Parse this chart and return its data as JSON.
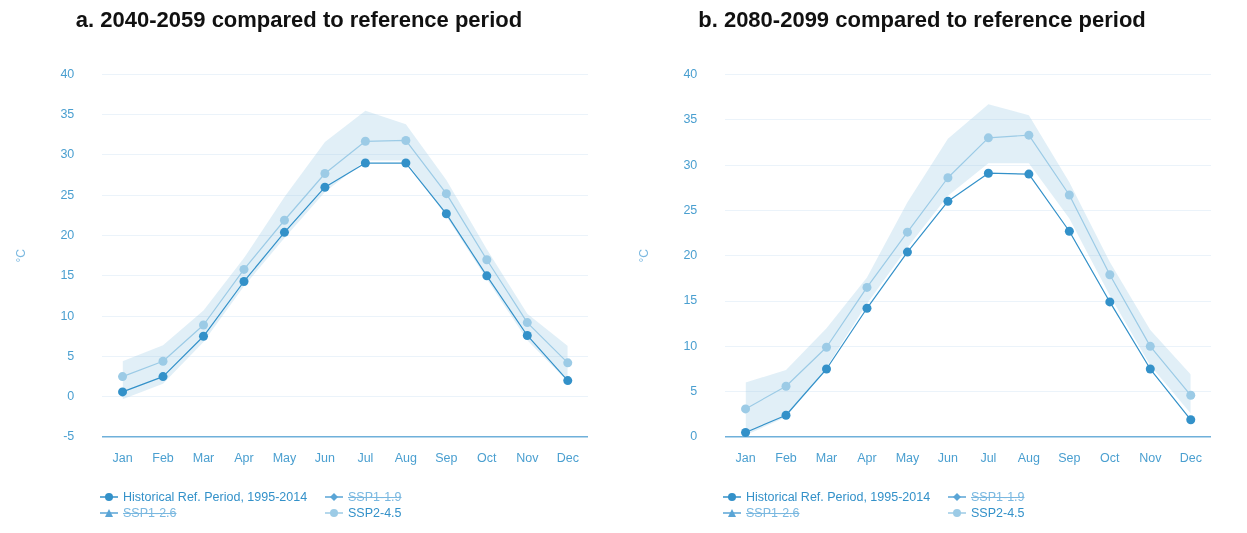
{
  "chart_data": [
    {
      "type": "line",
      "title": "a. 2040-2059 compared to reference period",
      "ylabel": "°C",
      "categories": [
        "Jan",
        "Feb",
        "Mar",
        "Apr",
        "May",
        "Jun",
        "Jul",
        "Aug",
        "Sep",
        "Oct",
        "Nov",
        "Dec"
      ],
      "ylim": [
        -5,
        40
      ],
      "yticks": [
        -5,
        0,
        5,
        10,
        15,
        20,
        25,
        30,
        35,
        40
      ],
      "grid": "y",
      "legend": "bottom left",
      "series": [
        {
          "name": "Historical Ref. Period, 1995-2014",
          "color": "#3391c9",
          "marker": "circle",
          "values": [
            0.6,
            2.5,
            7.5,
            14.3,
            20.4,
            26.0,
            29.0,
            29.0,
            22.7,
            15.0,
            7.6,
            2.0
          ]
        },
        {
          "name": "SSP1-1.9",
          "color": "#5aa5d6",
          "marker": "diamond",
          "values": [
            null,
            null,
            null,
            null,
            null,
            null,
            null,
            null,
            null,
            null,
            null,
            null
          ]
        },
        {
          "name": "SSP1-2.6",
          "color": "#5aa5d6",
          "marker": "triangle",
          "values": [
            null,
            null,
            null,
            null,
            null,
            null,
            null,
            null,
            null,
            null,
            null,
            null
          ]
        },
        {
          "name": "SSP2-4.5",
          "color": "#9ccbe6",
          "marker": "circle",
          "values": [
            2.5,
            4.4,
            8.9,
            15.8,
            21.9,
            27.7,
            31.7,
            31.8,
            25.2,
            17.0,
            9.2,
            4.2
          ],
          "lower": [
            -0.3,
            1.6,
            6.8,
            13.7,
            19.7,
            25.4,
            29.3,
            29.3,
            22.4,
            14.6,
            7.0,
            1.9
          ],
          "upper": [
            4.4,
            6.4,
            10.7,
            17.2,
            24.8,
            31.6,
            35.5,
            33.8,
            26.9,
            18.3,
            10.3,
            6.3
          ]
        }
      ]
    },
    {
      "type": "line",
      "title": "b. 2080-2099 compared to reference period",
      "ylabel": "°C",
      "categories": [
        "Jan",
        "Feb",
        "Mar",
        "Apr",
        "May",
        "Jun",
        "Jul",
        "Aug",
        "Sep",
        "Oct",
        "Nov",
        "Dec"
      ],
      "ylim": [
        0,
        40
      ],
      "yticks": [
        0,
        5,
        10,
        15,
        20,
        25,
        30,
        35,
        40
      ],
      "grid": "y",
      "legend": "bottom left",
      "series": [
        {
          "name": "Historical Ref. Period, 1995-2014",
          "color": "#3391c9",
          "marker": "circle",
          "values": [
            0.5,
            2.4,
            7.5,
            14.2,
            20.4,
            26.0,
            29.1,
            29.0,
            22.7,
            14.9,
            7.5,
            1.9
          ]
        },
        {
          "name": "SSP1-1.9",
          "color": "#5aa5d6",
          "marker": "diamond",
          "values": [
            null,
            null,
            null,
            null,
            null,
            null,
            null,
            null,
            null,
            null,
            null,
            null
          ]
        },
        {
          "name": "SSP1-2.6",
          "color": "#5aa5d6",
          "marker": "triangle",
          "values": [
            null,
            null,
            null,
            null,
            null,
            null,
            null,
            null,
            null,
            null,
            null,
            null
          ]
        },
        {
          "name": "SSP2-4.5",
          "color": "#9ccbe6",
          "marker": "circle",
          "values": [
            3.1,
            5.6,
            9.9,
            16.5,
            22.6,
            28.6,
            33.0,
            33.3,
            26.7,
            17.9,
            10.0,
            4.6
          ],
          "lower": [
            0.2,
            2.2,
            7.7,
            14.7,
            20.9,
            26.6,
            30.2,
            30.2,
            24.1,
            15.6,
            7.9,
            2.6
          ],
          "upper": [
            6.0,
            7.4,
            12.0,
            17.6,
            25.9,
            32.9,
            36.7,
            35.5,
            28.1,
            19.3,
            11.8,
            6.9
          ]
        }
      ]
    }
  ]
}
